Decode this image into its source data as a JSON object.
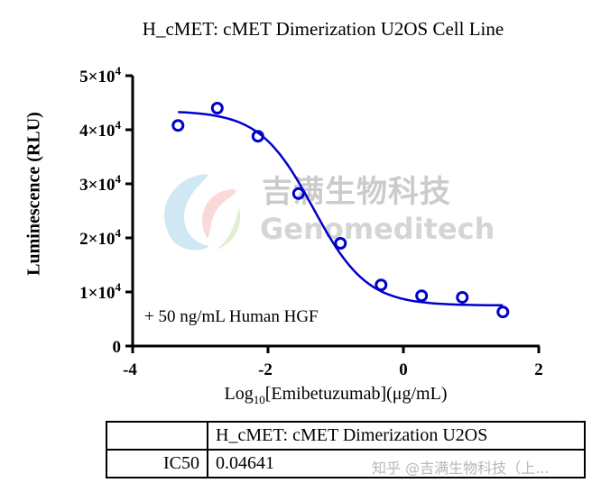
{
  "chart_data": {
    "type": "scatter",
    "title": "H_cMET: cMET Dimerization U2OS Cell Line",
    "xlabel": "Log10[Emibetuzumab](μg/mL)",
    "ylabel": "Luminescence (RLU)",
    "xlim": [
      -4,
      2
    ],
    "ylim": [
      0,
      50000
    ],
    "x_ticks": [
      "-4",
      "-2",
      "0",
      "2"
    ],
    "y_ticks": [
      "0",
      "1×10^4",
      "2×10^4",
      "3×10^4",
      "4×10^4",
      "5×10^4"
    ],
    "grid": false,
    "series": [
      {
        "name": "Emibetuzumab (+ 50 ng/mL Human HGF)",
        "marker": "open-circle",
        "color": "#0000cc",
        "x": [
          -3.33,
          -2.75,
          -2.15,
          -1.55,
          -0.93,
          -0.33,
          0.27,
          0.87,
          1.47
        ],
        "y": [
          40800,
          44000,
          38800,
          28200,
          19000,
          11300,
          9300,
          9000,
          6300
        ]
      },
      {
        "name": "4PL fit",
        "type": "line",
        "color": "#0000cc",
        "x_range": [
          -3.33,
          1.47
        ],
        "top": 43500,
        "bottom": 7500,
        "log_ic50": -1.333,
        "hill_slope": -1.1
      }
    ],
    "annotations": [
      "+ 50 ng/mL Human HGF"
    ],
    "table": {
      "headers": [
        "",
        "H_cMET: cMET Dimerization U2OS"
      ],
      "rows": [
        [
          "IC50",
          "0.04641"
        ]
      ]
    }
  },
  "title": "H_cMET: cMET Dimerization U2OS Cell Line",
  "axes": {
    "ylabel": "Luminescence (RLU)",
    "xlabel_prefix": "Log",
    "xlabel_sub": "10",
    "xlabel_suffix": "[Emibetuzumab](μg/mL)",
    "xticks": [
      "-4",
      "-2",
      "0",
      "2"
    ],
    "yticks": [
      {
        "mant": "0",
        "exp": ""
      },
      {
        "mant": "1×10",
        "exp": "4"
      },
      {
        "mant": "2×10",
        "exp": "4"
      },
      {
        "mant": "3×10",
        "exp": "4"
      },
      {
        "mant": "4×10",
        "exp": "4"
      },
      {
        "mant": "5×10",
        "exp": "4"
      }
    ]
  },
  "annotation": "+ 50 ng/mL Human HGF",
  "watermark": {
    "cn": "吉满生物科技",
    "en": "Genomeditech",
    "footer": "知乎 @吉满生物科技（上..."
  },
  "table": {
    "header_blank": "",
    "header_col": "H_cMET: cMET Dimerization U2OS",
    "row_label": "IC50",
    "row_value": "0.04641"
  },
  "colors": {
    "series": "#0000cc",
    "axis": "#000000"
  }
}
